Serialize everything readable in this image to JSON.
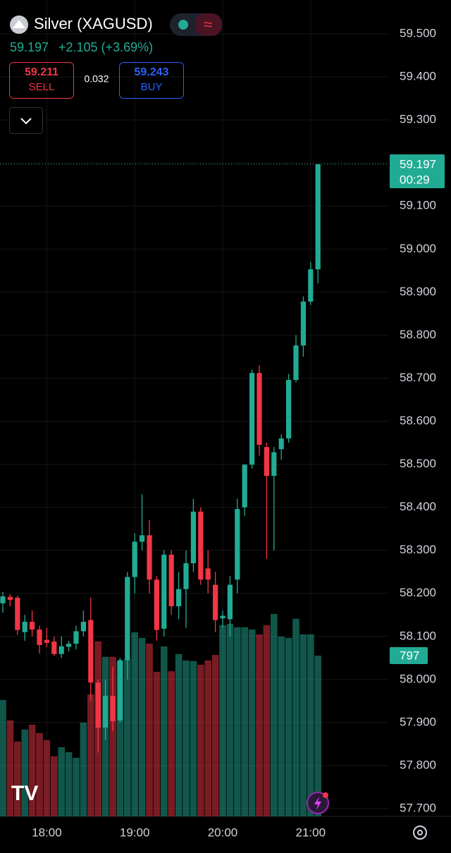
{
  "header": {
    "title": "Silver (XAGUSD)",
    "price": "59.197",
    "change": "+2.105 (+3.69%)",
    "sell_price": "59.211",
    "sell_label": "SELL",
    "spread": "0.032",
    "buy_price": "59.243",
    "buy_label": "BUY"
  },
  "chart_data": {
    "type": "candlestick",
    "title": "Silver (XAGUSD)",
    "categories": [
      null,
      null,
      null,
      null,
      null,
      null,
      "18:00",
      null,
      null,
      null,
      null,
      null,
      null,
      null,
      null,
      null,
      null,
      null,
      "19:00",
      null,
      null,
      null,
      null,
      null,
      null,
      null,
      null,
      null,
      null,
      null,
      "20:00",
      null,
      null,
      null,
      null,
      null,
      null,
      null,
      null,
      null,
      null,
      null,
      "21:00",
      null
    ],
    "open": [
      58.177,
      58.192,
      58.19,
      58.11,
      58.134,
      58.116,
      58.092,
      58.088,
      58.059,
      58.076,
      58.083,
      58.112,
      58.138,
      57.993,
      57.888,
      57.962,
      57.905,
      58.045,
      58.238,
      58.32,
      58.335,
      58.232,
      58.118,
      58.29,
      58.17,
      58.21,
      58.27,
      58.39,
      58.258,
      58.22,
      58.142,
      58.14,
      58.232,
      58.4,
      58.499,
      58.712,
      58.54,
      58.473,
      58.535,
      58.56,
      58.696,
      58.776,
      58.878,
      58.953
    ],
    "high": [
      58.203,
      58.198,
      58.195,
      58.15,
      58.16,
      58.125,
      58.12,
      58.1,
      58.1,
      58.09,
      58.125,
      58.16,
      58.19,
      58.0,
      58.0,
      58.03,
      58.05,
      58.25,
      58.34,
      58.43,
      58.37,
      58.24,
      58.3,
      58.3,
      58.25,
      58.3,
      58.42,
      58.4,
      58.3,
      58.25,
      58.16,
      58.24,
      58.42,
      58.5,
      58.72,
      58.73,
      58.55,
      58.54,
      58.57,
      58.71,
      58.8,
      58.89,
      58.97,
      59.197
    ],
    "low": [
      58.155,
      58.17,
      58.104,
      58.09,
      58.1,
      58.06,
      58.075,
      58.055,
      58.05,
      58.065,
      58.07,
      58.1,
      57.95,
      57.83,
      57.86,
      57.88,
      57.9,
      58.0,
      58.2,
      58.3,
      58.2,
      58.09,
      58.1,
      58.15,
      58.14,
      58.12,
      58.25,
      58.22,
      58.2,
      58.11,
      58.12,
      58.1,
      58.2,
      58.38,
      58.49,
      58.52,
      58.28,
      58.3,
      58.51,
      58.55,
      58.69,
      58.75,
      58.87,
      58.92
    ],
    "close": [
      58.193,
      58.185,
      58.115,
      58.134,
      58.116,
      58.08,
      58.085,
      58.059,
      58.077,
      58.083,
      58.112,
      58.134,
      57.993,
      57.888,
      57.962,
      57.903,
      58.045,
      58.238,
      58.32,
      58.335,
      58.232,
      58.115,
      58.29,
      58.17,
      58.21,
      58.27,
      58.39,
      58.232,
      58.232,
      58.138,
      58.148,
      58.22,
      58.396,
      58.499,
      58.712,
      58.545,
      58.473,
      58.528,
      58.56,
      58.696,
      58.776,
      58.878,
      58.953,
      59.197
    ],
    "volume": [
      577,
      476,
      371,
      430,
      455,
      413,
      378,
      298,
      343,
      318,
      290,
      465,
      605,
      868,
      791,
      791,
      770,
      780,
      913,
      885,
      857,
      717,
      843,
      720,
      805,
      773,
      770,
      752,
      773,
      801,
      948,
      955,
      938,
      938,
      927,
      903,
      948,
      1004,
      892,
      885,
      980,
      903,
      903,
      797
    ],
    "up_color": "#22ab94",
    "down_color": "#f23645",
    "ylim": [
      57.7,
      59.5
    ],
    "yticks": [
      {
        "value": 57.7,
        "label": "57.700"
      },
      {
        "value": 57.8,
        "label": "57.800"
      },
      {
        "value": 57.9,
        "label": "57.900"
      },
      {
        "value": 58.0,
        "label": "58.000"
      },
      {
        "value": 58.1,
        "label": "58.100"
      },
      {
        "value": 58.2,
        "label": "58.200"
      },
      {
        "value": 58.3,
        "label": "58.300"
      },
      {
        "value": 58.4,
        "label": "58.400"
      },
      {
        "value": 58.5,
        "label": "58.500"
      },
      {
        "value": 58.6,
        "label": "58.600"
      },
      {
        "value": 58.7,
        "label": "58.700"
      },
      {
        "value": 58.8,
        "label": "58.800"
      },
      {
        "value": 58.9,
        "label": "58.900"
      },
      {
        "value": 59.0,
        "label": "59.000"
      },
      {
        "value": 59.1,
        "label": "59.100"
      },
      {
        "value": 59.2,
        "label": "59.200"
      },
      {
        "value": 59.3,
        "label": "59.300"
      },
      {
        "value": 59.4,
        "label": "59.400"
      },
      {
        "value": 59.5,
        "label": "59.500"
      }
    ],
    "countdown": "00:29",
    "grid": true
  }
}
